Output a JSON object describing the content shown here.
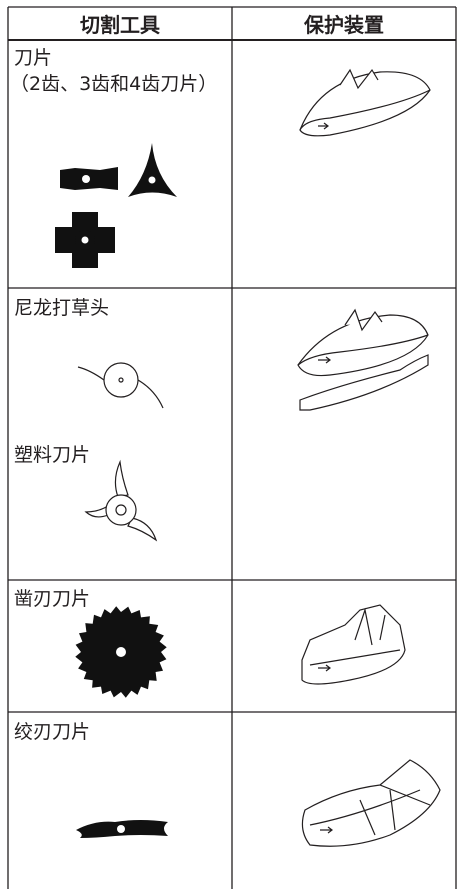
{
  "table": {
    "headers": [
      "切割工具",
      "保护装置"
    ],
    "rows": [
      [
        "刀片",
        "（2齿、3齿和4齿刀片）"
      ],
      [
        "尼龙打草头",
        "塑料刀片"
      ],
      [
        "凿刃刀片"
      ],
      [
        "绞刃刀片"
      ]
    ]
  }
}
